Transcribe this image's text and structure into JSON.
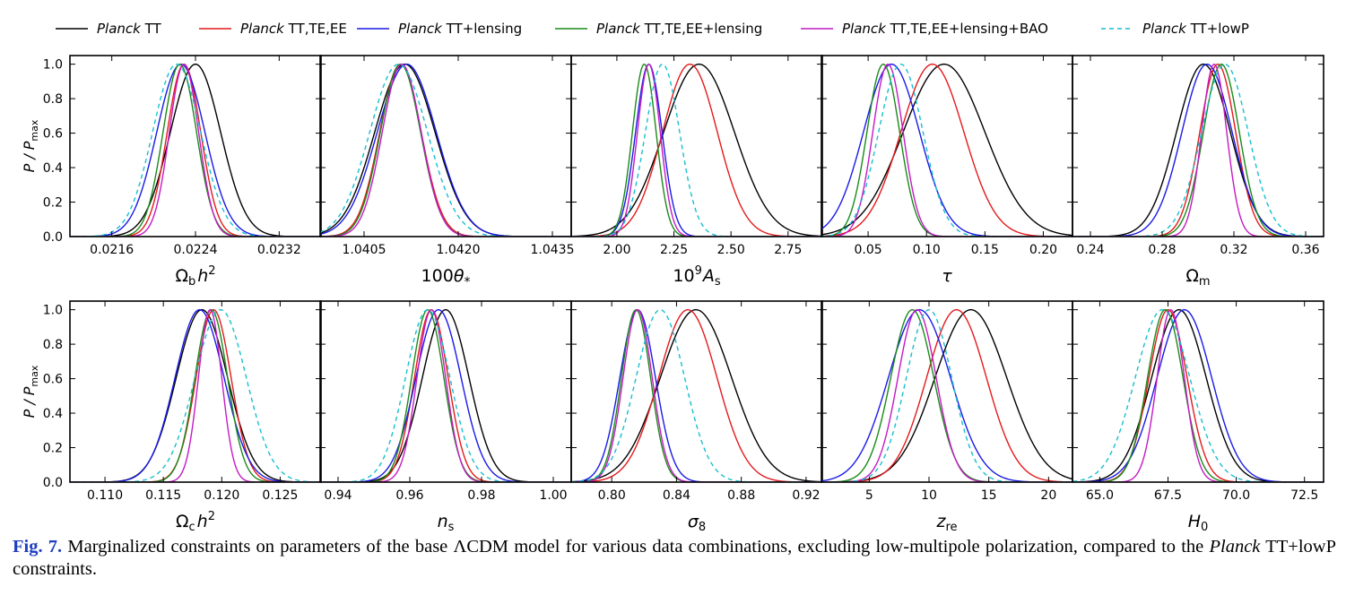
{
  "legend": [
    {
      "name": "Planck TT",
      "italic": "Planck",
      "rest": " TT",
      "color": "#000000",
      "dash": false
    },
    {
      "name": "Planck TT,TE,EE",
      "italic": "Planck",
      "rest": " TT,TE,EE",
      "color": "#e31a1c",
      "dash": false
    },
    {
      "name": "Planck TT+lensing",
      "italic": "Planck",
      "rest": " TT+lensing",
      "color": "#1a1ae6",
      "dash": false
    },
    {
      "name": "Planck TT,TE,EE+lensing",
      "italic": "Planck",
      "rest": " TT,TE,EE+lensing",
      "color": "#1a8a1a",
      "dash": false
    },
    {
      "name": "Planck TT,TE,EE+lensing+BAO",
      "italic": "Planck",
      "rest": " TT,TE,EE+lensing+BAO",
      "color": "#c41ac4",
      "dash": false
    },
    {
      "name": "Planck TT+lowP",
      "italic": "Planck",
      "rest": " TT+lowP",
      "color": "#17becf",
      "dash": true
    }
  ],
  "ylabel": "P / Pmax",
  "ylabel_main": "P / P",
  "ylabel_sub": "max",
  "caption": {
    "fig_label": "Fig. 7.",
    "text1": " Marginalized constraints on parameters of the base ΛCDM model for various data combinations, excluding low-multipole polarization, compared to the ",
    "italic": "Planck",
    "text2": " TT+lowP constraints."
  },
  "chart_data": [
    {
      "type": "line",
      "param": "omega_b_h2",
      "xlabel": "Ωb h²",
      "xlim": [
        0.0212,
        0.0236
      ],
      "xticks": [
        0.0216,
        0.0224,
        0.0232
      ],
      "tick_labels": [
        "0.0216",
        "0.0224",
        "0.0232"
      ],
      "ylim": [
        0,
        1.05
      ],
      "yticks": [
        0.0,
        0.2,
        0.4,
        0.6,
        0.8,
        1.0
      ],
      "series": [
        {
          "name": "Planck TT",
          "mean": 0.0224,
          "sigma": 0.00024
        },
        {
          "name": "Planck TT,TE,EE",
          "mean": 0.02229,
          "sigma": 0.00016
        },
        {
          "name": "Planck TT+lensing",
          "mean": 0.02226,
          "sigma": 0.00023
        },
        {
          "name": "Planck TT,TE,EE+lensing",
          "mean": 0.02225,
          "sigma": 0.00016
        },
        {
          "name": "Planck TT,TE,EE+lensing+BAO",
          "mean": 0.02229,
          "sigma": 0.00014
        },
        {
          "name": "Planck TT+lowP",
          "mean": 0.02222,
          "sigma": 0.00023
        }
      ]
    },
    {
      "type": "line",
      "param": "100theta_star",
      "xlabel": "100θ*",
      "xlim": [
        1.0398,
        1.0438
      ],
      "xticks": [
        1.0405,
        1.042,
        1.0435
      ],
      "tick_labels": [
        "1.0405",
        "1.0420",
        "1.0435"
      ],
      "ylim": [
        0,
        1.05
      ],
      "yticks": [
        0.0,
        0.2,
        0.4,
        0.6,
        0.8,
        1.0
      ],
      "series": [
        {
          "name": "Planck TT",
          "mean": 1.04115,
          "sigma": 0.00048
        },
        {
          "name": "Planck TT,TE,EE",
          "mean": 1.04108,
          "sigma": 0.00033
        },
        {
          "name": "Planck TT+lensing",
          "mean": 1.04118,
          "sigma": 0.00047
        },
        {
          "name": "Planck TT,TE,EE+lensing",
          "mean": 1.04108,
          "sigma": 0.00032
        },
        {
          "name": "Planck TT,TE,EE+lensing+BAO",
          "mean": 1.0411,
          "sigma": 0.00031
        },
        {
          "name": "Planck TT+lowP",
          "mean": 1.04105,
          "sigma": 0.00046
        }
      ]
    },
    {
      "type": "line",
      "param": "1e9_As",
      "xlabel": "10⁹As",
      "xlim": [
        1.8,
        2.9
      ],
      "xticks": [
        2.0,
        2.25,
        2.5,
        2.75
      ],
      "tick_labels": [
        "2.00",
        "2.25",
        "2.50",
        "2.75"
      ],
      "ylim": [
        0,
        1.05
      ],
      "yticks": [
        0.0,
        0.2,
        0.4,
        0.6,
        0.8,
        1.0
      ],
      "series": [
        {
          "name": "Planck TT",
          "mean": 2.36,
          "sigma": 0.155
        },
        {
          "name": "Planck TT,TE,EE",
          "mean": 2.32,
          "sigma": 0.12
        },
        {
          "name": "Planck TT+lensing",
          "mean": 2.14,
          "sigma": 0.058
        },
        {
          "name": "Planck TT,TE,EE+lensing",
          "mean": 2.12,
          "sigma": 0.052
        },
        {
          "name": "Planck TT,TE,EE+lensing+BAO",
          "mean": 2.14,
          "sigma": 0.05
        },
        {
          "name": "Planck TT+lowP",
          "mean": 2.2,
          "sigma": 0.075
        }
      ]
    },
    {
      "type": "line",
      "param": "tau",
      "xlabel": "τ",
      "xlim": [
        0.01,
        0.225
      ],
      "xticks": [
        0.05,
        0.1,
        0.15,
        0.2
      ],
      "tick_labels": [
        "0.05",
        "0.10",
        "0.15",
        "0.20"
      ],
      "ylim": [
        0,
        1.05
      ],
      "yticks": [
        0.0,
        0.2,
        0.4,
        0.6,
        0.8,
        1.0
      ],
      "series": [
        {
          "name": "Planck TT",
          "mean": 0.115,
          "sigma": 0.035
        },
        {
          "name": "Planck TT,TE,EE",
          "mean": 0.105,
          "sigma": 0.027
        },
        {
          "name": "Planck TT+lensing",
          "mean": 0.07,
          "sigma": 0.024
        },
        {
          "name": "Planck TT,TE,EE+lensing",
          "mean": 0.063,
          "sigma": 0.014
        },
        {
          "name": "Planck TT,TE,EE+lensing+BAO",
          "mean": 0.067,
          "sigma": 0.013
        },
        {
          "name": "Planck TT+lowP",
          "mean": 0.078,
          "sigma": 0.019
        }
      ]
    },
    {
      "type": "line",
      "param": "Omega_m",
      "xlabel": "Ωm",
      "xlim": [
        0.23,
        0.37
      ],
      "xticks": [
        0.24,
        0.28,
        0.32,
        0.36
      ],
      "tick_labels": [
        "0.24",
        "0.28",
        "0.32",
        "0.36"
      ],
      "ylim": [
        0,
        1.05
      ],
      "yticks": [
        0.0,
        0.2,
        0.4,
        0.6,
        0.8,
        1.0
      ],
      "series": [
        {
          "name": "Planck TT",
          "mean": 0.303,
          "sigma": 0.015
        },
        {
          "name": "Planck TT,TE,EE",
          "mean": 0.311,
          "sigma": 0.01
        },
        {
          "name": "Planck TT+lensing",
          "mean": 0.305,
          "sigma": 0.014
        },
        {
          "name": "Planck TT,TE,EE+lensing",
          "mean": 0.313,
          "sigma": 0.01
        },
        {
          "name": "Planck TT,TE,EE+lensing+BAO",
          "mean": 0.309,
          "sigma": 0.007
        },
        {
          "name": "Planck TT+lowP",
          "mean": 0.315,
          "sigma": 0.013
        }
      ]
    },
    {
      "type": "line",
      "param": "omega_c_h2",
      "xlabel": "Ωc h²",
      "xlim": [
        0.107,
        0.1285
      ],
      "xticks": [
        0.11,
        0.115,
        0.12,
        0.125
      ],
      "tick_labels": [
        "0.110",
        "0.115",
        "0.120",
        "0.125"
      ],
      "ylim": [
        0,
        1.05
      ],
      "yticks": [
        0.0,
        0.2,
        0.4,
        0.6,
        0.8,
        1.0
      ],
      "series": [
        {
          "name": "Planck TT",
          "mean": 0.1183,
          "sigma": 0.0022
        },
        {
          "name": "Planck TT,TE,EE",
          "mean": 0.1193,
          "sigma": 0.0015
        },
        {
          "name": "Planck TT+lensing",
          "mean": 0.1181,
          "sigma": 0.0021
        },
        {
          "name": "Planck TT,TE,EE+lensing",
          "mean": 0.1191,
          "sigma": 0.0014
        },
        {
          "name": "Planck TT,TE,EE+lensing+BAO",
          "mean": 0.119,
          "sigma": 0.001
        },
        {
          "name": "Planck TT+lowP",
          "mean": 0.1199,
          "sigma": 0.0022
        }
      ]
    },
    {
      "type": "line",
      "param": "n_s",
      "xlabel": "ns",
      "xlim": [
        0.935,
        1.005
      ],
      "xticks": [
        0.94,
        0.96,
        0.98,
        1.0
      ],
      "tick_labels": [
        "0.94",
        "0.96",
        "0.98",
        "1.00"
      ],
      "ylim": [
        0,
        1.05
      ],
      "yticks": [
        0.0,
        0.2,
        0.4,
        0.6,
        0.8,
        1.0
      ],
      "series": [
        {
          "name": "Planck TT",
          "mean": 0.97,
          "sigma": 0.0065
        },
        {
          "name": "Planck TT,TE,EE",
          "mean": 0.966,
          "sigma": 0.0047
        },
        {
          "name": "Planck TT+lensing",
          "mean": 0.968,
          "sigma": 0.0063
        },
        {
          "name": "Planck TT,TE,EE+lensing",
          "mean": 0.965,
          "sigma": 0.0045
        },
        {
          "name": "Planck TT,TE,EE+lensing+BAO",
          "mean": 0.966,
          "sigma": 0.004
        },
        {
          "name": "Planck TT+lowP",
          "mean": 0.965,
          "sigma": 0.0062
        }
      ]
    },
    {
      "type": "line",
      "param": "sigma_8",
      "xlabel": "σ8",
      "xlim": [
        0.775,
        0.93
      ],
      "xticks": [
        0.8,
        0.84,
        0.88,
        0.92
      ],
      "tick_labels": [
        "0.80",
        "0.84",
        "0.88",
        "0.92"
      ],
      "ylim": [
        0,
        1.05
      ],
      "yticks": [
        0.0,
        0.2,
        0.4,
        0.6,
        0.8,
        1.0
      ],
      "series": [
        {
          "name": "Planck TT",
          "mean": 0.852,
          "sigma": 0.022
        },
        {
          "name": "Planck TT,TE,EE",
          "mean": 0.847,
          "sigma": 0.018
        },
        {
          "name": "Planck TT+lensing",
          "mean": 0.816,
          "sigma": 0.011
        },
        {
          "name": "Planck TT,TE,EE+lensing",
          "mean": 0.815,
          "sigma": 0.009
        },
        {
          "name": "Planck TT,TE,EE+lensing+BAO",
          "mean": 0.816,
          "sigma": 0.009
        },
        {
          "name": "Planck TT+lowP",
          "mean": 0.83,
          "sigma": 0.015
        }
      ]
    },
    {
      "type": "line",
      "param": "z_re",
      "xlabel": "zre",
      "xlim": [
        1,
        22
      ],
      "xticks": [
        5,
        10,
        15,
        20
      ],
      "tick_labels": [
        "5",
        "10",
        "15",
        "20"
      ],
      "ylim": [
        0,
        1.05
      ],
      "yticks": [
        0.0,
        0.2,
        0.4,
        0.6,
        0.8,
        1.0
      ],
      "series": [
        {
          "name": "Planck TT",
          "mean": 13.5,
          "sigma": 3.0
        },
        {
          "name": "Planck TT,TE,EE",
          "mean": 12.3,
          "sigma": 2.5
        },
        {
          "name": "Planck TT+lensing",
          "mean": 9.2,
          "sigma": 2.6
        },
        {
          "name": "Planck TT,TE,EE+lensing",
          "mean": 8.6,
          "sigma": 1.8
        },
        {
          "name": "Planck TT,TE,EE+lensing+BAO",
          "mean": 9.0,
          "sigma": 1.6
        },
        {
          "name": "Planck TT+lowP",
          "mean": 10.0,
          "sigma": 1.9
        }
      ]
    },
    {
      "type": "line",
      "param": "H_0",
      "xlabel": "H0",
      "xlim": [
        64.0,
        73.2
      ],
      "xticks": [
        65.0,
        67.5,
        70.0,
        72.5
      ],
      "tick_labels": [
        "65.0",
        "67.5",
        "70.0",
        "72.5"
      ],
      "ylim": [
        0,
        1.05
      ],
      "yticks": [
        0.0,
        0.2,
        0.4,
        0.6,
        0.8,
        1.0
      ],
      "series": [
        {
          "name": "Planck TT",
          "mean": 67.9,
          "sigma": 1.0
        },
        {
          "name": "Planck TT,TE,EE",
          "mean": 67.5,
          "sigma": 0.7
        },
        {
          "name": "Planck TT+lensing",
          "mean": 68.1,
          "sigma": 1.0
        },
        {
          "name": "Planck TT,TE,EE+lensing",
          "mean": 67.4,
          "sigma": 0.65
        },
        {
          "name": "Planck TT,TE,EE+lensing+BAO",
          "mean": 67.6,
          "sigma": 0.5
        },
        {
          "name": "Planck TT+lowP",
          "mean": 67.3,
          "sigma": 1.0
        }
      ]
    }
  ]
}
